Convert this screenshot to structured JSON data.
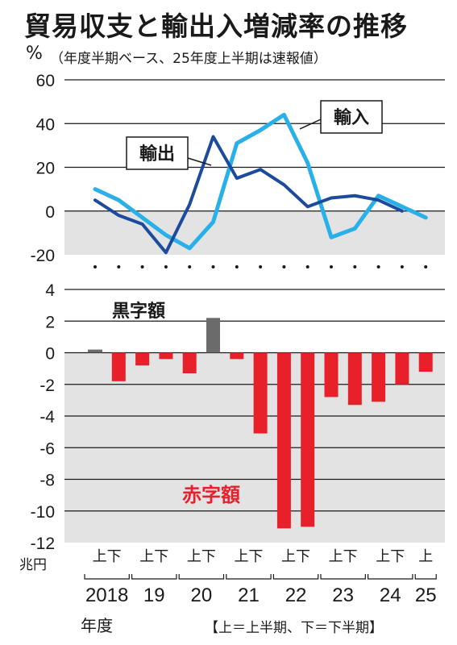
{
  "title": "貿易収支と輸出入増減率の推移",
  "subtitle": "（年度半期ベース、25年度上半期は速報値）",
  "note": "【上＝上半期、下＝下半期】",
  "chart_data": [
    {
      "type": "line",
      "unit": "%",
      "ylim": [
        -20,
        60
      ],
      "yticks": [
        "60",
        "40",
        "20",
        "0",
        "-20"
      ],
      "x": [
        "2018上",
        "2018下",
        "19上",
        "19下",
        "20上",
        "20下",
        "21上",
        "21下",
        "22上",
        "22下",
        "23上",
        "23下",
        "24上",
        "24下",
        "25上"
      ],
      "series": [
        {
          "name": "輸出",
          "color": "#1c4a9c",
          "values": [
            5,
            -2,
            -6,
            -19,
            3,
            34,
            15,
            19,
            12,
            2,
            6,
            7,
            5,
            0,
            null
          ]
        },
        {
          "name": "輸入",
          "color": "#2ab0e8",
          "values": [
            10,
            5,
            -3,
            -11,
            -17,
            -5,
            31,
            37,
            44,
            22,
            -12,
            -8,
            7,
            2,
            -3
          ]
        }
      ]
    },
    {
      "type": "bar",
      "unit": "兆円",
      "ylim": [
        -12,
        4
      ],
      "yticks": [
        "4",
        "2",
        "0",
        "-2",
        "-4",
        "-6",
        "-8",
        "-10",
        "-12"
      ],
      "categories": [
        "2018上",
        "2018下",
        "19上",
        "19下",
        "20上",
        "20下",
        "21上",
        "21下",
        "22上",
        "22下",
        "23上",
        "23下",
        "24上",
        "24下",
        "25上"
      ],
      "values": [
        0.2,
        -1.8,
        -0.8,
        -0.4,
        -1.3,
        2.2,
        -0.4,
        -5.1,
        -11.1,
        -11.0,
        -2.8,
        -3.3,
        -3.1,
        -2.0,
        -1.2
      ],
      "annotations": {
        "surplus": "黒字額",
        "deficit": "赤字額"
      },
      "colors": {
        "surplus": "#6b6b6b",
        "deficit": "#e8202a"
      }
    }
  ],
  "axis": {
    "half_labels": [
      "上下",
      "上下",
      "上下",
      "上下",
      "上下",
      "上下",
      "上下",
      "上"
    ],
    "years": [
      "2018",
      "19",
      "20",
      "21",
      "22",
      "23",
      "24",
      "25"
    ],
    "fiscal_year_label": "年度",
    "unit_top": "%",
    "unit_bottom": "兆円"
  }
}
